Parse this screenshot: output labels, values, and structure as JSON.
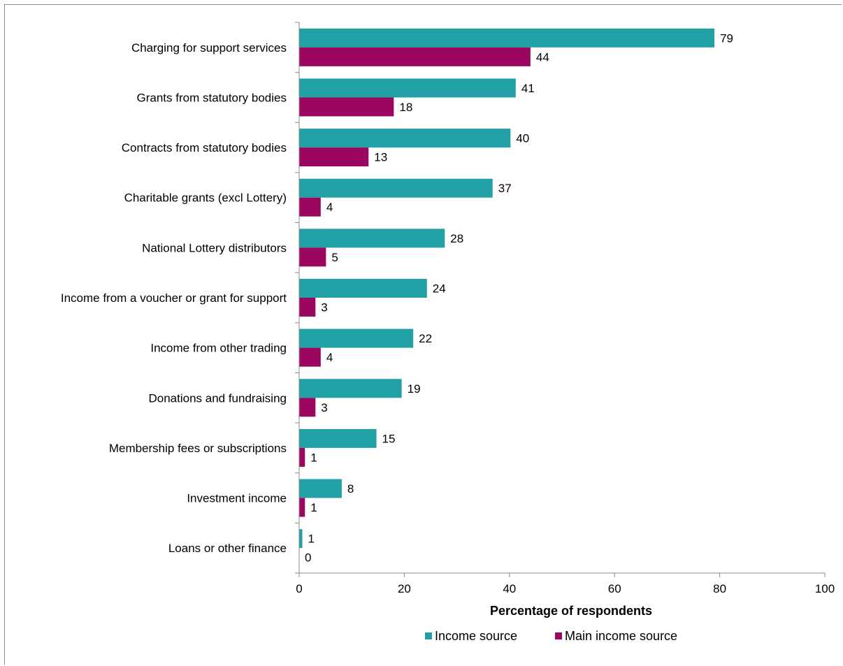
{
  "chart_data": {
    "type": "bar",
    "orientation": "horizontal",
    "title": "",
    "xlabel": "Percentage of respondents",
    "ylabel": "",
    "xlim": [
      0,
      100
    ],
    "xticks": [
      0,
      20,
      40,
      60,
      80,
      100
    ],
    "grid": false,
    "legend_position": "bottom",
    "categories": [
      "Charging for support services",
      "Grants from statutory bodies",
      "Contracts from statutory bodies",
      "Charitable grants (excl Lottery)",
      "National Lottery distributors",
      "Income from a voucher or grant for support",
      "Income from other trading",
      "Donations and fundraising",
      "Membership fees or subscriptions",
      "Investment income",
      "Loans or other finance"
    ],
    "series": [
      {
        "name": "Income source",
        "color": "#21a0a6",
        "values": [
          79,
          41,
          40,
          37,
          28,
          24,
          22,
          19,
          15,
          8,
          1
        ],
        "bar_values": [
          79,
          41.2,
          40.2,
          36.8,
          27.7,
          24.3,
          21.7,
          19.5,
          14.7,
          8.1,
          0.6
        ]
      },
      {
        "name": "Main income source",
        "color": "#9b0660",
        "values": [
          44,
          18,
          13,
          4,
          5,
          3,
          4,
          3,
          1,
          1,
          0
        ],
        "bar_values": [
          44,
          18,
          13.2,
          4.1,
          5.1,
          3.1,
          4.1,
          3.1,
          1.1,
          1.1,
          0
        ]
      }
    ]
  }
}
